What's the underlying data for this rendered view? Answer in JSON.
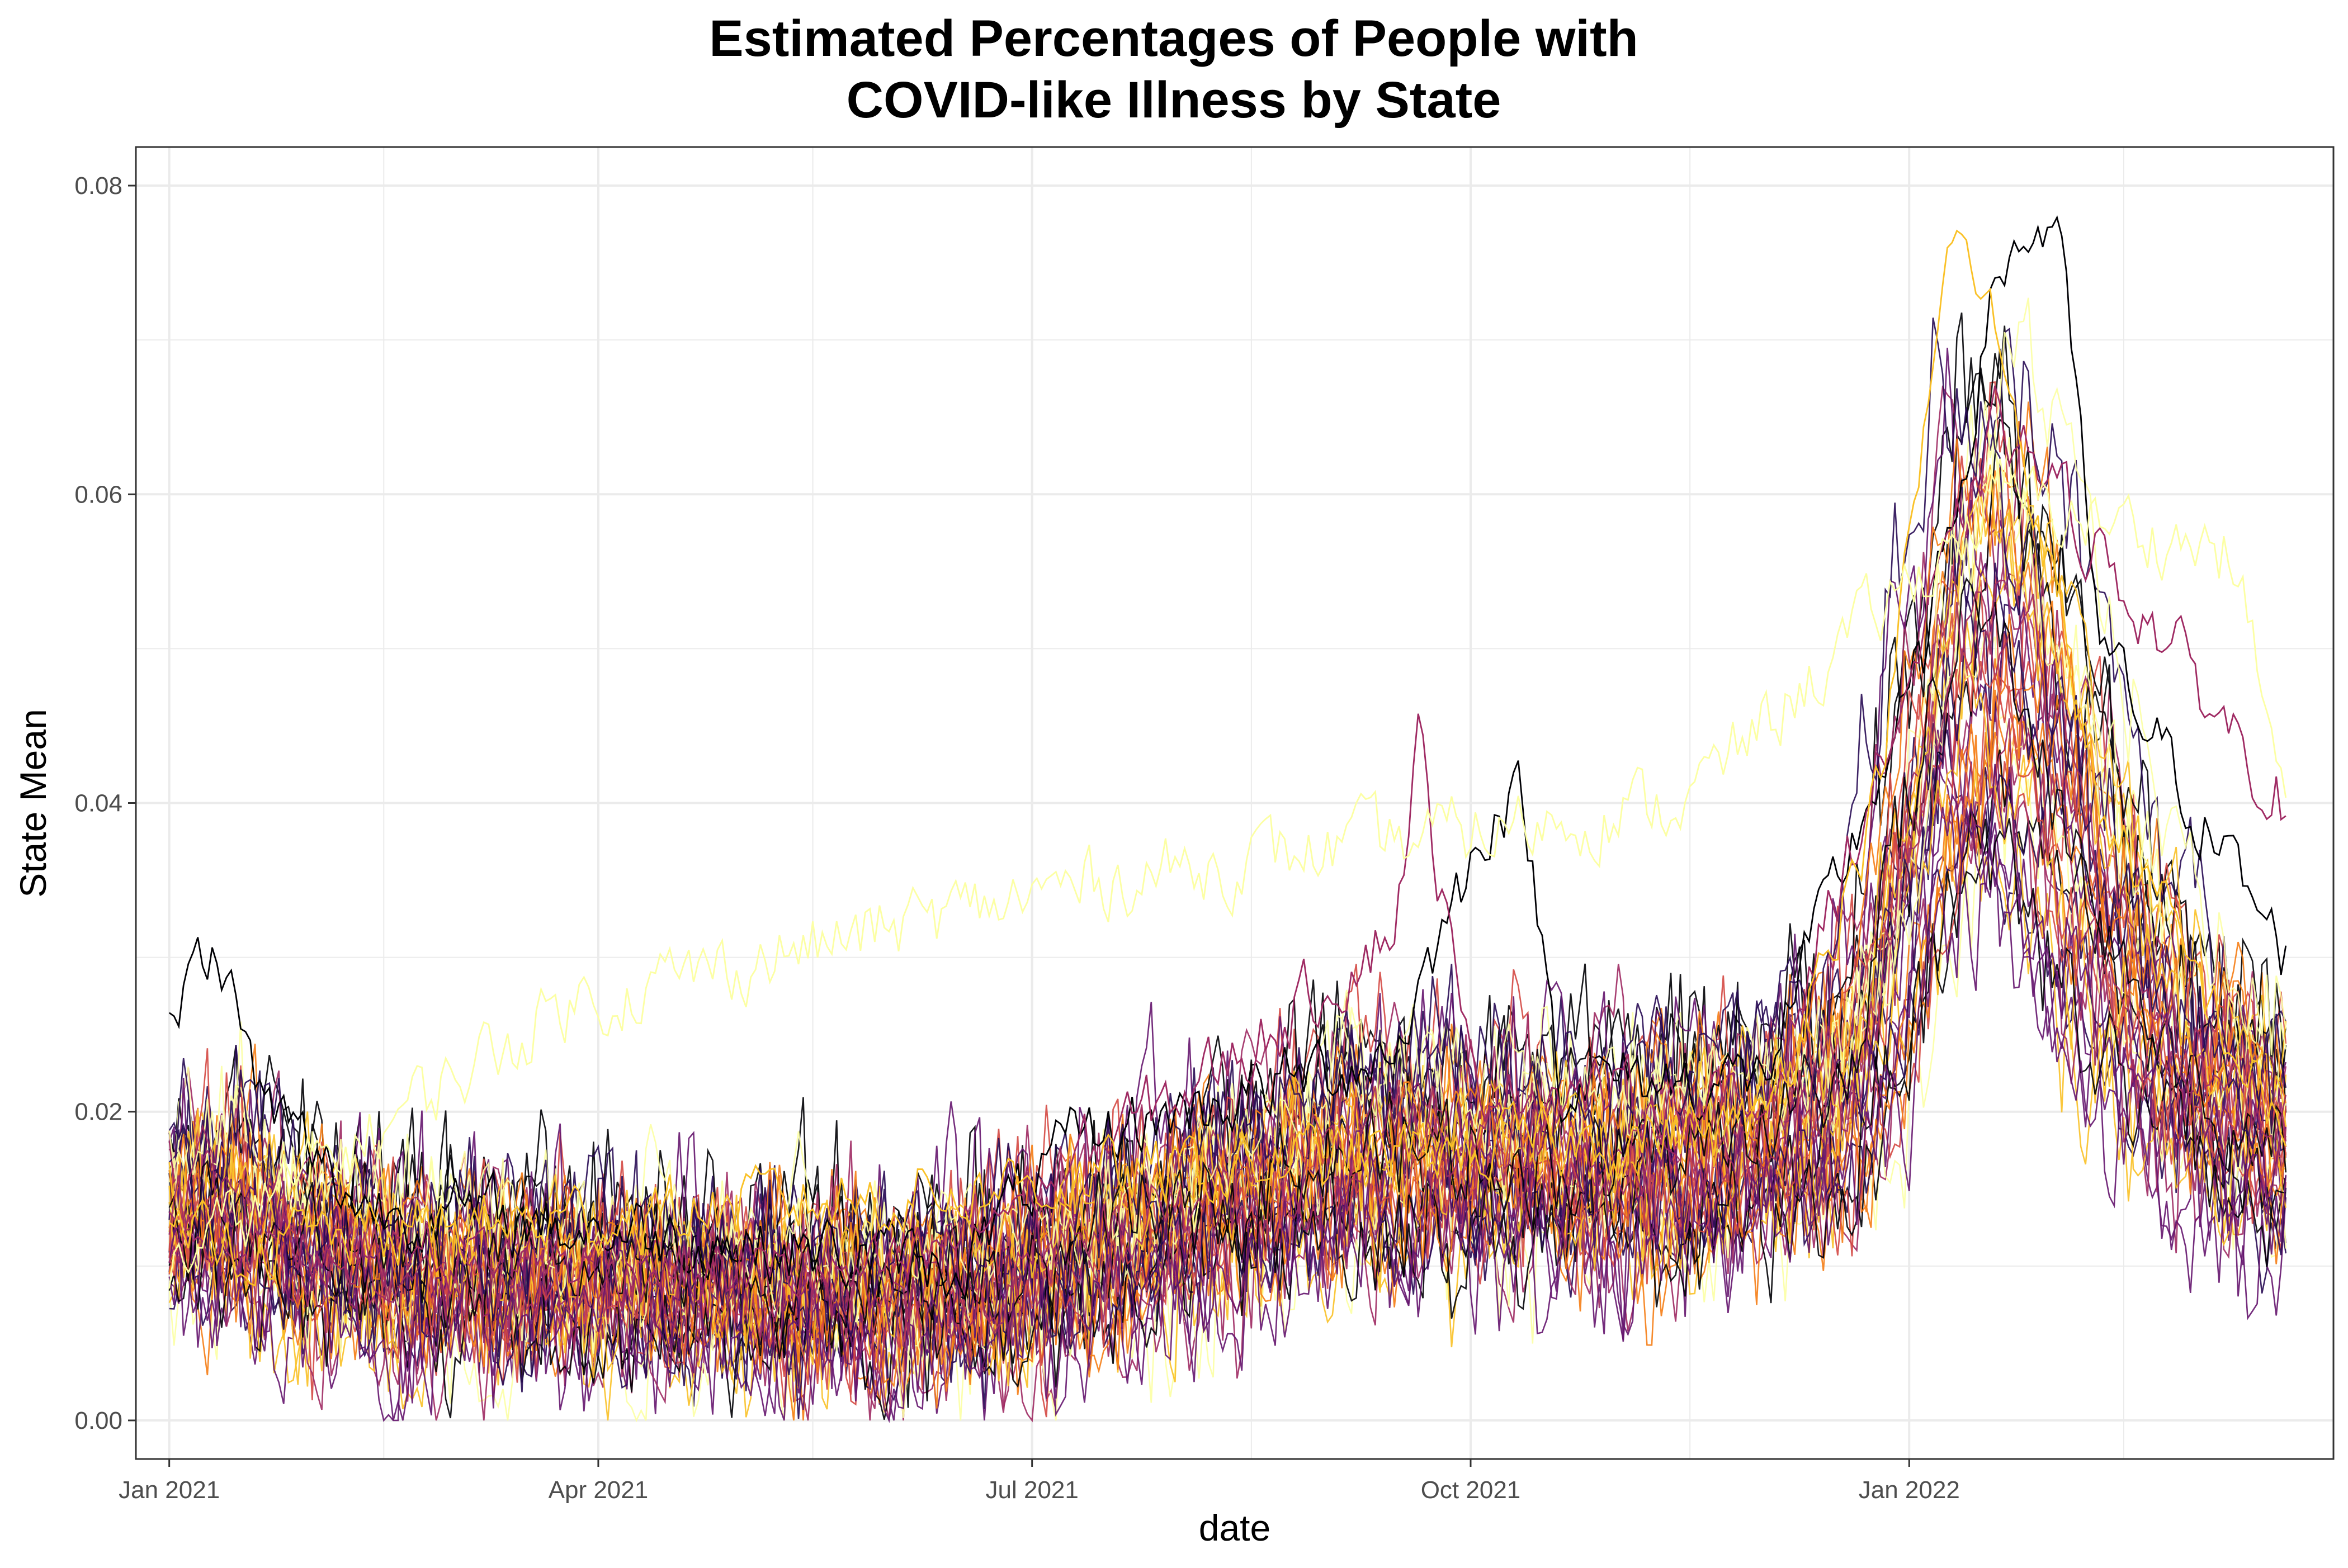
{
  "chart_data": {
    "type": "line",
    "title_lines": [
      "Estimated Percentages of People with",
      "COVID-like Illness by State"
    ],
    "xlabel": "date",
    "ylabel": "State Mean",
    "x_range": [
      "2020-12-25",
      "2022-03-31"
    ],
    "ylim": [
      -0.0025,
      0.0825
    ],
    "y_ticks": [
      0.0,
      0.02,
      0.04,
      0.06,
      0.08
    ],
    "y_tick_labels": [
      "0.00",
      "0.02",
      "0.04",
      "0.06",
      "0.08"
    ],
    "x_ticks": [
      "2021-01-01",
      "2021-04-01",
      "2021-07-01",
      "2021-10-01",
      "2022-01-01"
    ],
    "x_tick_labels": [
      "Jan 2021",
      "Apr 2021",
      "Jul 2021",
      "Oct 2021",
      "Jan 2022"
    ],
    "x_minor_ticks": [
      "2021-02-15",
      "2021-05-16",
      "2021-08-16",
      "2021-11-16",
      "2022-02-15"
    ],
    "y_minor_ticks": [
      0.01,
      0.03,
      0.05,
      0.07
    ],
    "grid": true,
    "legend": "none",
    "colormap": [
      "#000004",
      "#280b54",
      "#65156e",
      "#9f2a63",
      "#d44842",
      "#f57d15",
      "#fac127",
      "#fcffa4"
    ],
    "series_profile": {
      "dates": [
        "2021-01-01",
        "2021-01-15",
        "2021-02-01",
        "2021-03-01",
        "2021-04-01",
        "2021-05-01",
        "2021-06-01",
        "2021-07-01",
        "2021-08-01",
        "2021-09-01",
        "2021-10-01",
        "2021-11-01",
        "2021-12-01",
        "2021-12-20",
        "2022-01-05",
        "2022-01-15",
        "2022-01-25",
        "2022-02-15",
        "2022-03-01",
        "2022-03-21"
      ],
      "values": [
        0.013,
        0.014,
        0.011,
        0.009,
        0.009,
        0.0085,
        0.008,
        0.009,
        0.013,
        0.017,
        0.017,
        0.016,
        0.018,
        0.021,
        0.04,
        0.052,
        0.048,
        0.03,
        0.022,
        0.018
      ]
    },
    "series": [
      {
        "color": "#000004",
        "dates": [
          "2021-01-01",
          "2021-01-07",
          "2021-01-12",
          "2021-01-20",
          "2021-02-10",
          "2021-06-15",
          "2021-07-10",
          "2021-09-15",
          "2021-10-06",
          "2021-10-12",
          "2021-10-20",
          "2021-12-01",
          "2022-01-05",
          "2022-01-20",
          "2022-02-01",
          "2022-02-10",
          "2022-03-21"
        ],
        "values": [
          0.025,
          0.03,
          0.03,
          0.021,
          0.014,
          0.01,
          0.018,
          0.024,
          0.04,
          0.04,
          0.022,
          0.022,
          0.05,
          0.075,
          0.078,
          0.05,
          0.03
        ]
      },
      {
        "color": "#9f2a63",
        "dates": [
          "2021-01-01",
          "2021-06-01",
          "2021-08-15",
          "2021-09-15",
          "2021-09-20",
          "2021-10-01",
          "2021-12-01",
          "2022-01-20",
          "2022-03-21"
        ],
        "values": [
          0.012,
          0.009,
          0.024,
          0.032,
          0.044,
          0.022,
          0.02,
          0.065,
          0.04
        ]
      },
      {
        "color": "#fac127",
        "dates": [
          "2021-01-01",
          "2021-12-01",
          "2021-12-25",
          "2022-01-10",
          "2022-01-20",
          "2022-02-10",
          "2022-03-21"
        ],
        "values": [
          0.011,
          0.019,
          0.04,
          0.077,
          0.07,
          0.04,
          0.018
        ]
      },
      {
        "color": "#fcffa4",
        "dates": [
          "2021-01-01",
          "2021-03-25",
          "2021-07-15",
          "2021-11-15",
          "2022-01-20",
          "2022-03-10",
          "2022-03-21"
        ],
        "values": [
          0.01,
          0.027,
          0.035,
          0.04,
          0.06,
          0.056,
          0.04
        ]
      }
    ]
  }
}
